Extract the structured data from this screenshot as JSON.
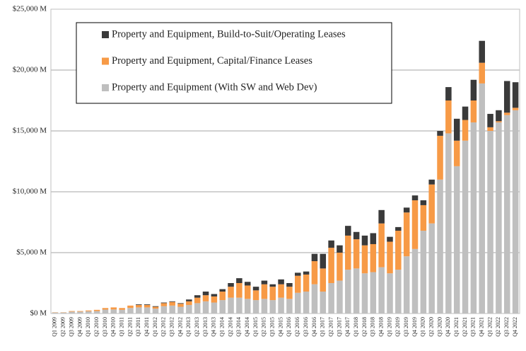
{
  "chart_data": {
    "type": "stacked_bar",
    "categories": [
      "Q1 2009",
      "Q2 2009",
      "Q3 2009",
      "Q4 2009",
      "Q1 2010",
      "Q2 2010",
      "Q3 2010",
      "Q4 2010",
      "Q1 2011",
      "Q2 2011",
      "Q3 2011",
      "Q4 2011",
      "Q1 2012",
      "Q2 2012",
      "Q3 2012",
      "Q4 2012",
      "Q1 2013",
      "Q2 2013",
      "Q3 2013",
      "Q4 2013",
      "Q1 2014",
      "Q2 2014",
      "Q3 2014",
      "Q4 2014",
      "Q1 2015",
      "Q2 2015",
      "Q3 2015",
      "Q4 2015",
      "Q1 2016",
      "Q2 2016",
      "Q3 2016",
      "Q4 2016",
      "Q1 2017",
      "Q2 2017",
      "Q3 2017",
      "Q4 2017",
      "Q1 2018",
      "Q2 2018",
      "Q3 2018",
      "Q4 2018",
      "Q1 2019",
      "Q2 2019",
      "Q3 2019",
      "Q4 2019",
      "Q1 2020",
      "Q2 2020",
      "Q3 2020",
      "Q4 2020",
      "Q1 2021",
      "Q2 2021",
      "Q3 2021",
      "Q4 2021",
      "Q1 2022",
      "Q2 2022",
      "Q3 2022",
      "Q4 2022"
    ],
    "series": [
      {
        "name": "Property and Equipment (With SW and Web Dev)",
        "color": "#bfbfbf",
        "values": [
          80,
          80,
          150,
          150,
          180,
          200,
          320,
          330,
          300,
          450,
          500,
          500,
          400,
          600,
          650,
          550,
          700,
          850,
          1000,
          900,
          1100,
          1300,
          1300,
          1200,
          1100,
          1200,
          1100,
          1300,
          1200,
          1700,
          1800,
          2400,
          1800,
          2500,
          2700,
          3600,
          3700,
          3300,
          3400,
          3800,
          3300,
          3600,
          4700,
          5300,
          6800,
          7400,
          11000,
          14800,
          12100,
          14200,
          15700,
          18900,
          15000,
          15700,
          16300,
          16700
        ]
      },
      {
        "name": "Property and Equipment, Capital/Finance Leases",
        "color": "#f79a46",
        "values": [
          20,
          20,
          50,
          50,
          70,
          100,
          130,
          170,
          150,
          200,
          200,
          200,
          150,
          250,
          300,
          250,
          300,
          450,
          500,
          500,
          700,
          900,
          1200,
          1100,
          800,
          1200,
          1100,
          1100,
          1000,
          1400,
          1400,
          1900,
          1900,
          2900,
          2300,
          2800,
          2400,
          2300,
          2300,
          3600,
          2600,
          3200,
          3600,
          4000,
          2100,
          3200,
          3600,
          2700,
          2100,
          1700,
          1800,
          1700,
          300,
          100,
          200,
          200
        ]
      },
      {
        "name": "Property and Equipment, Build-to-Suit/Operating Leases",
        "color": "#3a3a3a",
        "values": [
          0,
          0,
          0,
          0,
          0,
          0,
          0,
          0,
          0,
          0,
          50,
          50,
          50,
          50,
          50,
          50,
          150,
          200,
          300,
          200,
          200,
          300,
          400,
          300,
          300,
          300,
          200,
          400,
          300,
          250,
          250,
          600,
          1200,
          600,
          600,
          800,
          600,
          800,
          900,
          1100,
          400,
          300,
          400,
          400,
          400,
          400,
          400,
          1100,
          1800,
          1100,
          1700,
          1800,
          1100,
          900,
          2600,
          2100
        ]
      }
    ],
    "ylim": [
      0,
      25000
    ],
    "yticks": [
      {
        "value": 0,
        "label": "$0 M"
      },
      {
        "value": 5000,
        "label": "$5,000 M"
      },
      {
        "value": 10000,
        "label": "$10,000 M"
      },
      {
        "value": 15000,
        "label": "$15,000 M"
      },
      {
        "value": 20000,
        "label": "$20,000 M"
      },
      {
        "value": 25000,
        "label": "$25,000 M"
      }
    ],
    "grid": true,
    "legend": "upper left"
  }
}
